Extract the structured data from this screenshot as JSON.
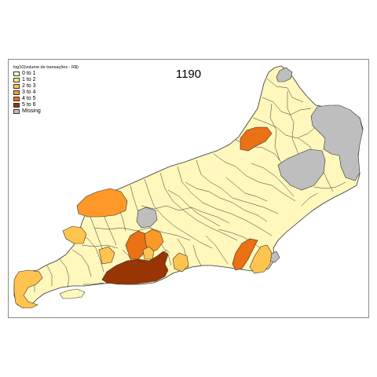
{
  "map": {
    "title": "1190",
    "legend_title": "log10(volume de transações - R$)",
    "legend": [
      {
        "key": "c0",
        "label": "0 to 1",
        "color": "#fff7bc"
      },
      {
        "key": "c1",
        "label": "1 to 2",
        "color": "#fee391"
      },
      {
        "key": "c2",
        "label": "2 to 3",
        "color": "#fec44f"
      },
      {
        "key": "c3",
        "label": "3 to 4",
        "color": "#fe9929"
      },
      {
        "key": "c4",
        "label": "4 to 5",
        "color": "#ec7014"
      },
      {
        "key": "c5",
        "label": "5 to 6",
        "color": "#993404"
      },
      {
        "key": "missing",
        "label": "Missing",
        "color": "#bebebe"
      }
    ],
    "border_color": "#333333",
    "frame_color": "#8a8a8a",
    "regions": [
      {
        "name": "missing-northwest-tip",
        "cls": "missing"
      },
      {
        "name": "missing-northeast-large",
        "cls": "missing"
      },
      {
        "name": "missing-central",
        "cls": "missing"
      },
      {
        "name": "missing-niteroi-east",
        "cls": "missing"
      },
      {
        "name": "orange-north-cantagalo",
        "cls": "c4"
      },
      {
        "name": "orange-west-resende",
        "cls": "c3"
      },
      {
        "name": "orange-west-barra",
        "cls": "c2"
      },
      {
        "name": "orange-west-island",
        "cls": "c2"
      },
      {
        "name": "orange-itaguai",
        "cls": "c2"
      },
      {
        "name": "dark-orange-nova-iguacu",
        "cls": "c4"
      },
      {
        "name": "orange-duque-caxias",
        "cls": "c3"
      },
      {
        "name": "orange-mage",
        "cls": "c2"
      },
      {
        "name": "orange-niteroi",
        "cls": "c2"
      },
      {
        "name": "dark-orange-macae",
        "cls": "c4"
      },
      {
        "name": "orange-rio-das-ostras",
        "cls": "c2"
      },
      {
        "name": "rio-de-janeiro-city",
        "cls": "c5"
      }
    ]
  }
}
